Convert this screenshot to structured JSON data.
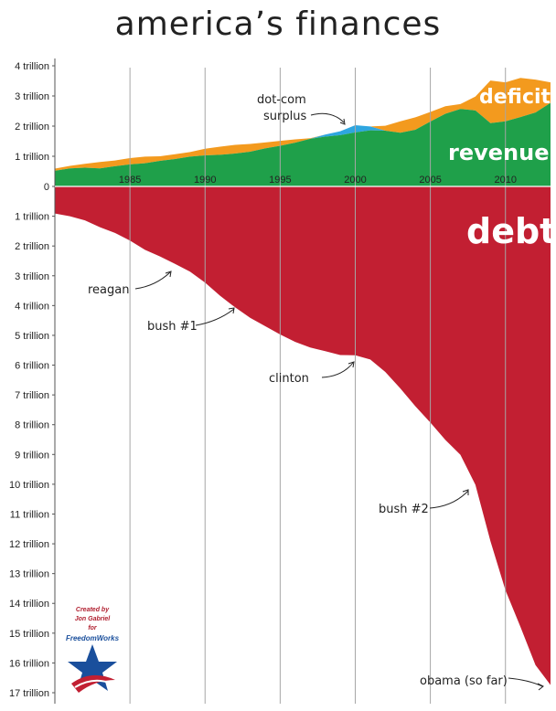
{
  "chart_data": {
    "type": "area",
    "title": "america’s finances",
    "xticks": [
      1985,
      1990,
      1995,
      2000,
      2005,
      2010
    ],
    "yticks_positive": [
      "4 trillion",
      "3 trillion",
      "2 trillion",
      "1 trillion",
      "0"
    ],
    "yticks_negative": [
      "1 trillion",
      "2 trillion",
      "3 trillion",
      "4 trillion",
      "5 trillion",
      "6 trillion",
      "7 trillion",
      "8 trillion",
      "9 trillion",
      "10 trillion",
      "11 trillion",
      "12 trillion",
      "13 trillion",
      "14 trillion",
      "15 trillion",
      "16 trillion",
      "17 trillion"
    ],
    "xlim": [
      1980,
      2013
    ],
    "ylim_top": 4,
    "ylim_bottom": 17,
    "grid": true,
    "x": [
      1980,
      1981,
      1982,
      1983,
      1984,
      1985,
      1986,
      1987,
      1988,
      1989,
      1990,
      1991,
      1992,
      1993,
      1994,
      1995,
      1996,
      1997,
      1998,
      1999,
      2000,
      2001,
      2002,
      2003,
      2004,
      2005,
      2006,
      2007,
      2008,
      2009,
      2010,
      2011,
      2012,
      2013
    ],
    "series": [
      {
        "name": "revenue",
        "values": [
          0.52,
          0.6,
          0.62,
          0.6,
          0.67,
          0.73,
          0.77,
          0.85,
          0.91,
          0.99,
          1.03,
          1.05,
          1.09,
          1.15,
          1.26,
          1.35,
          1.45,
          1.58,
          1.72,
          1.83,
          2.03,
          1.99,
          1.85,
          1.78,
          1.88,
          2.15,
          2.41,
          2.57,
          2.52,
          2.1,
          2.16,
          2.3,
          2.45,
          2.77
        ],
        "color": "#1fa04a"
      },
      {
        "name": "deficit",
        "values": [
          0.07,
          0.08,
          0.13,
          0.21,
          0.19,
          0.21,
          0.22,
          0.15,
          0.16,
          0.15,
          0.22,
          0.27,
          0.29,
          0.26,
          0.2,
          0.16,
          0.11,
          0.02,
          0.0,
          0.0,
          0.0,
          0.0,
          0.16,
          0.38,
          0.41,
          0.32,
          0.25,
          0.16,
          0.46,
          1.41,
          1.29,
          1.3,
          1.09,
          0.68
        ],
        "color": "#f39a1e"
      },
      {
        "name": "surplus",
        "values": [
          0,
          0,
          0,
          0,
          0,
          0,
          0,
          0,
          0,
          0,
          0,
          0,
          0,
          0,
          0,
          0,
          0,
          0,
          0.07,
          0.13,
          0.24,
          0.13,
          0,
          0,
          0,
          0,
          0,
          0,
          0,
          0,
          0,
          0,
          0,
          0
        ],
        "color": "#2ea6e0"
      },
      {
        "name": "debt",
        "values": [
          0.91,
          1.0,
          1.14,
          1.37,
          1.56,
          1.82,
          2.13,
          2.35,
          2.6,
          2.86,
          3.23,
          3.67,
          4.06,
          4.41,
          4.69,
          4.97,
          5.22,
          5.41,
          5.53,
          5.66,
          5.67,
          5.81,
          6.23,
          6.78,
          7.38,
          7.93,
          8.51,
          9.01,
          10.02,
          11.91,
          13.56,
          14.79,
          16.07,
          16.74
        ],
        "color": "#c21f32"
      }
    ],
    "labels": {
      "deficit": "deficit",
      "revenue": "revenue",
      "debt": "debt"
    },
    "annotations": [
      {
        "text": "reagan"
      },
      {
        "text": "bush #1"
      },
      {
        "text": "clinton"
      },
      {
        "text": "bush #2"
      },
      {
        "text": "obama (so far)"
      },
      {
        "text": "dot-com"
      },
      {
        "text": "surplus"
      }
    ],
    "credit": [
      "Created by",
      "Jon Gabriel",
      "for"
    ],
    "credit_brand": "FreedomWorks"
  },
  "colors": {
    "revenue": "#1fa04a",
    "deficit": "#f39a1e",
    "surplus": "#2ea6e0",
    "debt": "#c21f32",
    "grid": "#a6a6a6"
  }
}
